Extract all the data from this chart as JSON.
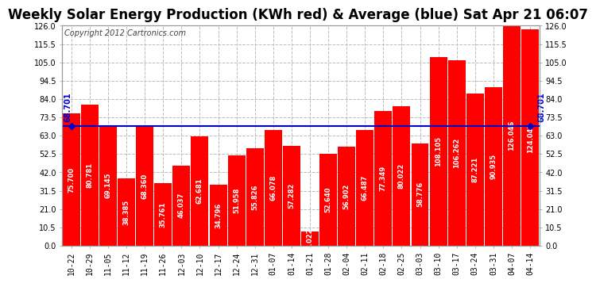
{
  "title": "Weekly Solar Energy Production (KWh red) & Average (blue) Sat Apr 21 06:07",
  "copyright": "Copyright 2012 Cartronics.com",
  "categories": [
    "10-22",
    "10-29",
    "11-05",
    "11-12",
    "11-19",
    "11-26",
    "12-03",
    "12-10",
    "12-17",
    "12-24",
    "12-31",
    "01-07",
    "01-14",
    "01-21",
    "01-28",
    "02-04",
    "02-11",
    "02-18",
    "02-25",
    "03-03",
    "03-10",
    "03-17",
    "03-24",
    "03-31",
    "04-07",
    "04-14"
  ],
  "values": [
    75.7,
    80.781,
    69.145,
    38.385,
    68.36,
    35.761,
    46.037,
    62.681,
    34.796,
    51.958,
    55.826,
    66.078,
    57.282,
    8.022,
    52.64,
    56.902,
    66.487,
    77.349,
    80.022,
    58.776,
    108.105,
    106.262,
    87.221,
    90.935,
    126.046,
    124.043
  ],
  "average": 68.701,
  "average_label": "68.701",
  "bar_color": "#ff0000",
  "average_color": "#0000cc",
  "bg_color": "#ffffff",
  "plot_bg_color": "#ffffff",
  "grid_color": "#bbbbbb",
  "text_color": "#000000",
  "ylim": [
    0,
    126.0
  ],
  "yticks": [
    0.0,
    10.5,
    21.0,
    31.5,
    42.0,
    52.5,
    63.0,
    73.5,
    84.0,
    94.5,
    105.0,
    115.5,
    126.0
  ],
  "title_fontsize": 12,
  "tick_fontsize": 7,
  "bar_label_fontsize": 6,
  "avg_label_fontsize": 7,
  "copyright_fontsize": 7
}
